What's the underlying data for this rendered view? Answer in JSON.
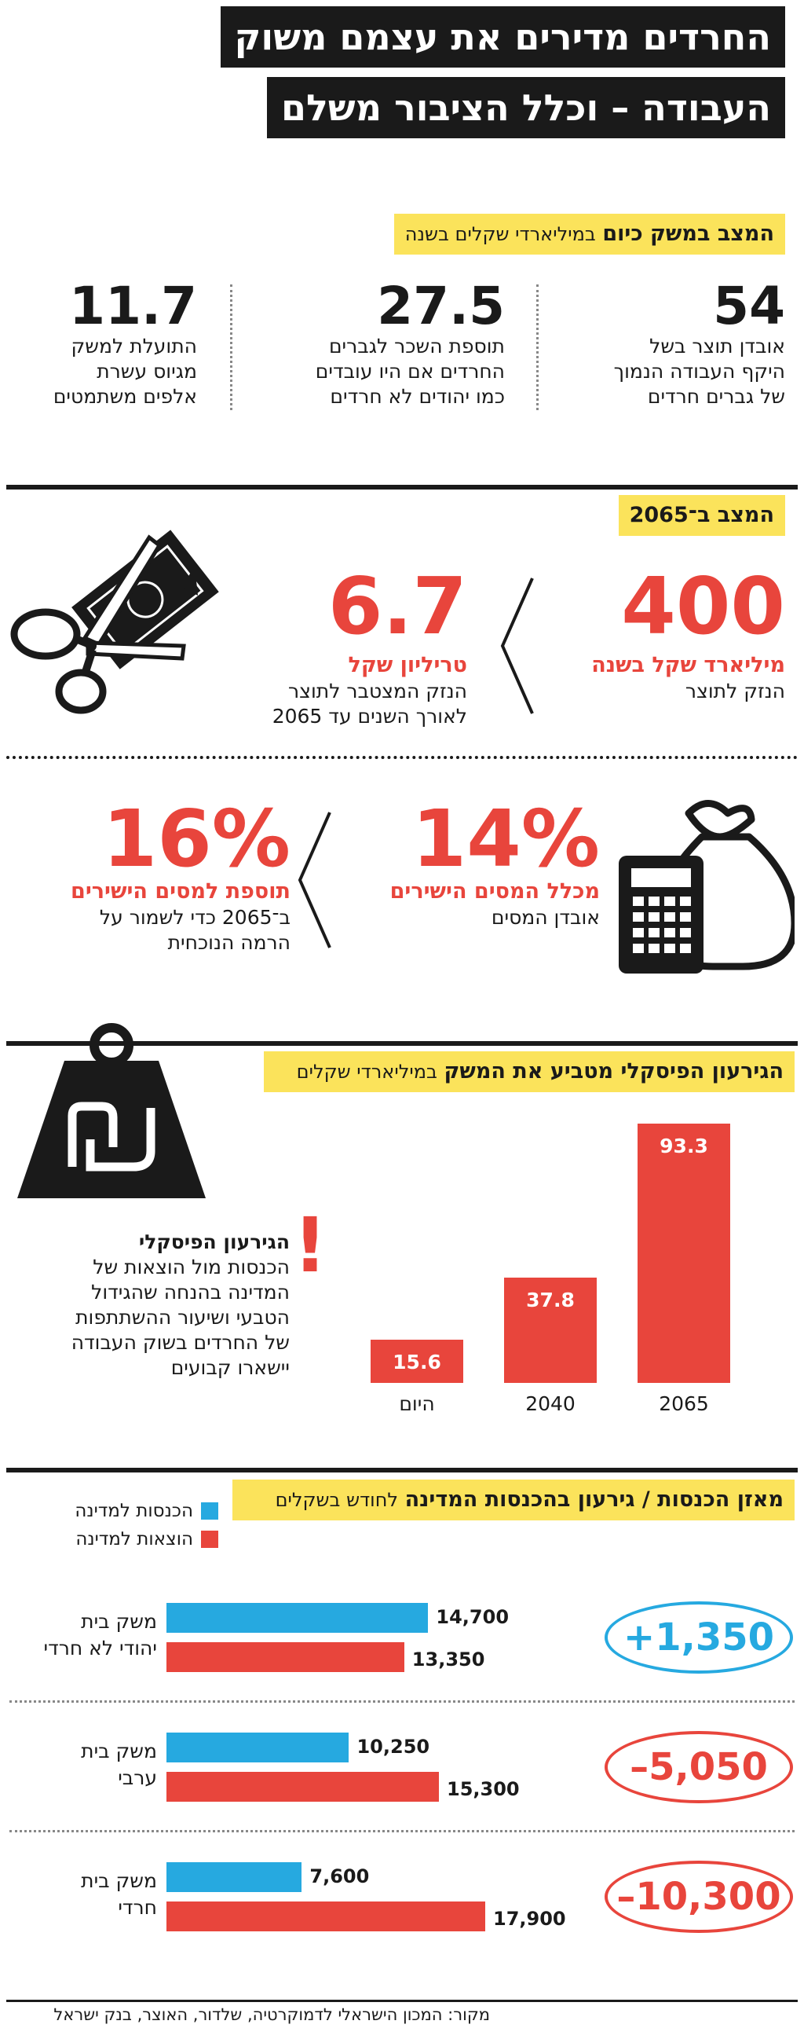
{
  "title": {
    "line1": "החרדים מדירים את עצמם משוק",
    "line2": "העבודה – וכלל הציבור משלם"
  },
  "section_today": {
    "label_bold": "המצב במשק כיום",
    "label_thin": "במיליארדי שקלים בשנה",
    "stats": [
      {
        "value": "54",
        "text": [
          "אובדן תוצר בשל",
          "היקף העבודה הנמוך",
          "של גברים חרדים"
        ]
      },
      {
        "value": "27.5",
        "text": [
          "תוספת השכר לגברים",
          "החרדים אם היו עובדים",
          "כמו יהודים לא חרדים"
        ]
      },
      {
        "value": "11.7",
        "text": [
          "התועלת למשק",
          "מגיוס עשרת",
          "אלפים משתמטים"
        ]
      }
    ]
  },
  "section_2065": {
    "label": "המצב ב־2065",
    "left": {
      "value": "400",
      "unit": "מיליארד שקל בשנה",
      "text": [
        "הנזק לתוצר"
      ]
    },
    "right": {
      "value": "6.7",
      "unit": "טריליון שקל",
      "text": [
        "הנזק המצטבר לתוצר",
        "לאורך השנים עד 2065"
      ]
    },
    "tax_loss": {
      "value": "14%",
      "unit": "מכלל המסים הישירים",
      "text": [
        "אובדן המסים"
      ]
    },
    "tax_add": {
      "value": "16%",
      "unit": "תוספת למסים הישירים",
      "text": [
        "ב־2065 כדי לשמור על",
        "הרמה הנוכחית"
      ]
    }
  },
  "icons": {
    "scissors": "scissors-cutting-bill-icon",
    "money_bag": "money-bag-calculator-icon",
    "weight": "shekel-weight-icon"
  },
  "colors": {
    "red": "#e8453c",
    "blue": "#26a9e0",
    "yellow": "#fbe35b",
    "black": "#1a1a1a"
  },
  "chart_data": [
    {
      "type": "bar",
      "title": "הגירעון הפיסקלי מטביע את המשק",
      "subtitle": "במיליארדי שקלים",
      "categories": [
        "היום",
        "2040",
        "2065"
      ],
      "values": [
        15.6,
        37.8,
        93.3
      ],
      "ylim": [
        0,
        93.3
      ],
      "grid": false,
      "annotation": {
        "mark": "!",
        "heading": "הגירעון הפיסקלי",
        "text": [
          "הכנסות מול הוצאות של",
          "המדינה בהנחה שהגידול",
          "הטבעי ושיעור ההשתתפות",
          "של החרדים בשוק העבודה",
          "יישארו קבועים"
        ]
      }
    },
    {
      "type": "bar",
      "orientation": "horizontal",
      "title": "מאזן הכנסות / גירעון בהכנסות המדינה",
      "subtitle": "לחודש בשקלים",
      "legend": [
        "הכנסות למדינה",
        "הוצאות למדינה"
      ],
      "legend_position": "top-left",
      "categories": [
        [
          "משק בית",
          "יהודי לא חרדי"
        ],
        [
          "משק בית",
          "ערבי"
        ],
        [
          "משק בית",
          "חרדי"
        ]
      ],
      "series": [
        {
          "name": "הכנסות למדינה",
          "values": [
            14700,
            10250,
            7600
          ]
        },
        {
          "name": "הוצאות למדינה",
          "values": [
            13350,
            15300,
            17900
          ]
        }
      ],
      "value_labels": [
        [
          "14,700",
          "13,350"
        ],
        [
          "10,250",
          "15,300"
        ],
        [
          "7,600",
          "17,900"
        ]
      ],
      "balance": [
        "+1,350",
        "–5,050",
        "–10,300"
      ]
    }
  ],
  "source": "מקור: המכון הישראלי לדמוקרטיה, שלדור, האוצר, בנק ישראל"
}
